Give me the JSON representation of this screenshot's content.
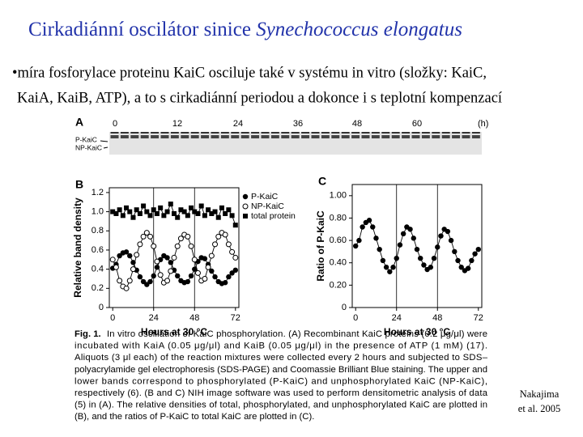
{
  "title": {
    "text": "Cirkadiánní oscilátor sinice ",
    "species": "Synechococcus elongatus"
  },
  "bullet": [
    "•míra fosforylace proteinu KaiC osciluje také v systému in vitro (složky: KaiC,",
    "KaiA, KaiB, ATP), a to s cirkadiánní periodou a dokonce i s teplotní kompenzací"
  ],
  "gel": {
    "panel_label": "A",
    "time_labels": [
      0,
      12,
      24,
      36,
      48,
      60
    ],
    "unit": "(h)",
    "bands": [
      "P-KaiC",
      "NP-KaiC"
    ]
  },
  "chart_data": [
    {
      "type": "line",
      "panel_label": "B",
      "xlabel": "Hours at 30 °C",
      "ylabel": "Relative band density",
      "xlim": [
        -2,
        74
      ],
      "ylim": [
        0,
        1.25
      ],
      "xticks": [
        0,
        24,
        48,
        72
      ],
      "yticks": [
        0,
        0.2,
        0.4,
        0.6,
        0.8,
        {
          "value": 1,
          "label": "1.0"
        },
        1.2
      ],
      "grid": "x-inner",
      "legend": "upper-right",
      "x": [
        0,
        2,
        4,
        6,
        8,
        10,
        12,
        14,
        16,
        18,
        20,
        22,
        24,
        26,
        28,
        30,
        32,
        34,
        36,
        38,
        40,
        42,
        44,
        46,
        48,
        50,
        52,
        54,
        56,
        58,
        60,
        62,
        64,
        66,
        68,
        70,
        72
      ],
      "series": [
        {
          "name": "P-KaiC",
          "color": "#000000",
          "marker": "circle",
          "values": [
            0.41,
            0.45,
            0.54,
            0.57,
            0.58,
            0.54,
            0.47,
            0.39,
            0.32,
            0.27,
            0.24,
            0.27,
            0.33,
            0.42,
            0.5,
            0.54,
            0.52,
            0.47,
            0.39,
            0.33,
            0.28,
            0.26,
            0.27,
            0.33,
            0.4,
            0.48,
            0.52,
            0.51,
            0.45,
            0.38,
            0.32,
            0.27,
            0.25,
            0.26,
            0.32,
            0.36,
            0.39
          ]
        },
        {
          "name": "NP-KaiC",
          "color": "#000000",
          "marker": "open-circle",
          "values": [
            0.5,
            0.42,
            0.28,
            0.22,
            0.2,
            0.28,
            0.4,
            0.55,
            0.66,
            0.74,
            0.78,
            0.74,
            0.64,
            0.48,
            0.34,
            0.26,
            0.28,
            0.38,
            0.52,
            0.64,
            0.72,
            0.76,
            0.74,
            0.64,
            0.5,
            0.36,
            0.28,
            0.3,
            0.42,
            0.54,
            0.66,
            0.74,
            0.78,
            0.76,
            0.66,
            0.58,
            0.52
          ]
        },
        {
          "name": "total protein",
          "color": "#000000",
          "marker": "square",
          "values": [
            1.0,
            0.98,
            1.02,
            0.96,
            1.04,
            1.0,
            0.94,
            1.02,
            0.98,
            1.06,
            1.0,
            0.96,
            1.02,
            0.98,
            1.04,
            0.96,
            1.0,
            1.08,
            0.98,
            0.94,
            1.02,
            1.0,
            0.96,
            1.04,
            1.0,
            0.98,
            1.06,
            0.96,
            1.02,
            0.98,
            1.0,
            0.94,
            1.04,
            0.98,
            1.02,
            0.96,
            0.86
          ]
        }
      ]
    },
    {
      "type": "line",
      "panel_label": "C",
      "xlabel": "Hours at 30 °C",
      "ylabel": "Ratio of P-KaiC",
      "xlim": [
        -2,
        74
      ],
      "ylim": [
        0,
        1.1
      ],
      "xticks": [
        0,
        24,
        48,
        72
      ],
      "yticks": [
        0,
        {
          "value": 0.2,
          "label": "0.20"
        },
        {
          "value": 0.4,
          "label": "0.40"
        },
        {
          "value": 0.6,
          "label": "0.60"
        },
        {
          "value": 0.8,
          "label": "0.80"
        },
        {
          "value": 1,
          "label": "1.00"
        }
      ],
      "grid": "x-inner",
      "color": "#000000",
      "marker": "circle",
      "x": [
        0,
        2,
        4,
        6,
        8,
        10,
        12,
        14,
        16,
        18,
        20,
        22,
        24,
        26,
        28,
        30,
        32,
        34,
        36,
        38,
        40,
        42,
        44,
        46,
        48,
        50,
        52,
        54,
        56,
        58,
        60,
        62,
        64,
        66,
        68,
        70,
        72
      ],
      "values": [
        0.55,
        0.6,
        0.72,
        0.76,
        0.78,
        0.72,
        0.62,
        0.52,
        0.42,
        0.36,
        0.32,
        0.36,
        0.44,
        0.56,
        0.66,
        0.72,
        0.7,
        0.62,
        0.52,
        0.44,
        0.38,
        0.34,
        0.36,
        0.44,
        0.54,
        0.64,
        0.7,
        0.68,
        0.6,
        0.5,
        0.42,
        0.36,
        0.33,
        0.35,
        0.42,
        0.48,
        0.52
      ]
    }
  ],
  "caption": {
    "label": "Fig. 1.",
    "lines": [
      "In vitro oscillation of KaiC phosphorylation. (A) Recombinant KaiC proteins (0.2 μg/μl) were",
      "incubated with KaiA (0.05 μg/μl) and KaiB (0.05 μg/μl) in the presence of ATP (1 mM) (17).",
      "Aliquots (3 μl each) of the reaction mixtures were collected every 2 hours and subjected to SDS–",
      "polyacrylamide gel electrophoresis (SDS-PAGE) and Coomassie Brilliant Blue staining. The upper and",
      "lower bands correspond to phosphorylated (P-KaiC) and unphosphorylated KaiC (NP-KaiC),",
      "respectively (6). (B and C) NIH image software was used to perform densitometric analysis of data",
      "(5) in (A). The relative densities of total, phosphorylated, and unphosphorylated KaiC are plotted in",
      "(B), and the ratios of P-KaiC to total KaiC are plotted in (C)."
    ]
  },
  "citation": [
    "Nakajima",
    "et al. 2005"
  ]
}
